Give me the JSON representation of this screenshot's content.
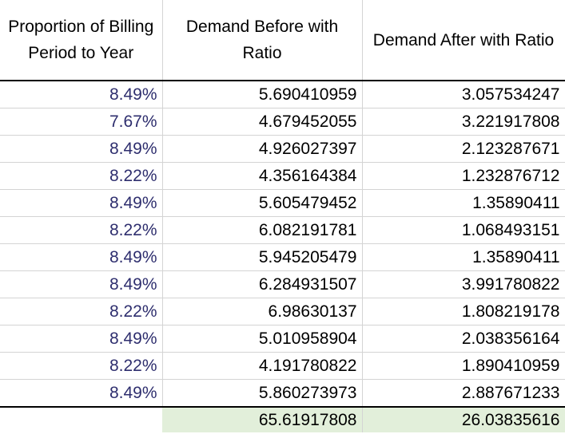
{
  "headers": {
    "col1": "Proportion of Billing Period to Year",
    "col2": "Demand Before with Ratio",
    "col3": "Demand After with Ratio"
  },
  "rows": [
    {
      "proportion": "8.49%",
      "before": "5.690410959",
      "after": "3.057534247"
    },
    {
      "proportion": "7.67%",
      "before": "4.679452055",
      "after": "3.221917808"
    },
    {
      "proportion": "8.49%",
      "before": "4.926027397",
      "after": "2.123287671"
    },
    {
      "proportion": "8.22%",
      "before": "4.356164384",
      "after": "1.232876712"
    },
    {
      "proportion": "8.49%",
      "before": "5.605479452",
      "after": "1.35890411"
    },
    {
      "proportion": "8.22%",
      "before": "6.082191781",
      "after": "1.068493151"
    },
    {
      "proportion": "8.49%",
      "before": "5.945205479",
      "after": "1.35890411"
    },
    {
      "proportion": "8.49%",
      "before": "6.284931507",
      "after": "3.991780822"
    },
    {
      "proportion": "8.22%",
      "before": "6.98630137",
      "after": "1.808219178"
    },
    {
      "proportion": "8.49%",
      "before": "5.010958904",
      "after": "2.038356164"
    },
    {
      "proportion": "8.22%",
      "before": "4.191780822",
      "after": "1.890410959"
    },
    {
      "proportion": "8.49%",
      "before": "5.860273973",
      "after": "2.887671233"
    }
  ],
  "totals": {
    "before": "65.61917808",
    "after": "26.03835616"
  },
  "colors": {
    "percent_text": "#2e2e6e",
    "total_highlight": "#e2efda"
  }
}
